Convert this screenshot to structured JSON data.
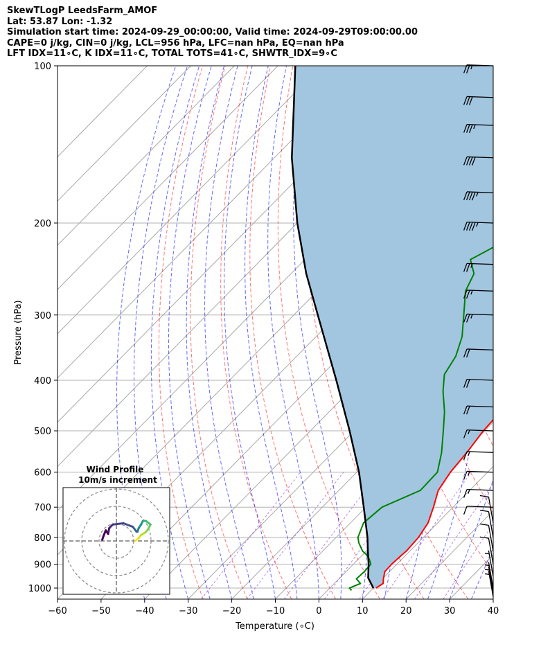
{
  "header": {
    "line1": "SkewTLogP LeedsFarm_AMOF",
    "line2": "Lat: 53.87   Lon: -1.32",
    "line3": "Simulation start time: 2024-09-29_00:00:00, Valid time: 2024-09-29T09:00:00.00",
    "line4": "CAPE=0 j/kg, CIN=0 j/kg, LCL=956 hPa, LFC=nan hPa, EQ=nan hPa",
    "line5": "LFT IDX=11∘C, K IDX=11∘C, TOTAL TOTS=41∘C, SHWTR_IDX=9∘C"
  },
  "chart_data": {
    "type": "line",
    "subtype": "skew-t log-p",
    "xlabel": "Temperature (∘C)",
    "ylabel": "Pressure (hPa)",
    "xlim": [
      -60,
      40
    ],
    "ylim": [
      1050,
      100
    ],
    "y_scale": "log",
    "grid": true,
    "x_ticks": [
      -60,
      -50,
      -40,
      -30,
      -20,
      -10,
      0,
      10,
      20,
      30,
      40
    ],
    "x_tick_labels": [
      "−60",
      "−50",
      "−40",
      "−30",
      "−20",
      "−10",
      "0",
      "10",
      "20",
      "30",
      "40"
    ],
    "y_ticks": [
      1000,
      900,
      800,
      700,
      600,
      500,
      400,
      300,
      200,
      100
    ],
    "y_tick_labels": [
      "1000",
      "900",
      "800",
      "700",
      "600",
      "500",
      "400",
      "300",
      "200",
      "100"
    ],
    "colors": {
      "temperature": "#ff0000",
      "dewpoint": "#008000",
      "parcel": "#000000",
      "fill": "#a2c6e0",
      "dry_adiabat": "#ff0000",
      "moist_adiabat": "#0000ff",
      "mixing_ratio": "#8a2be2",
      "isotherm": "#999999"
    },
    "series": [
      {
        "key": "temperature",
        "pressure": [
          1000,
          980,
          960,
          930,
          900,
          870,
          850,
          800,
          750,
          700,
          650,
          600,
          550,
          500,
          450,
          420,
          400,
          370,
          340,
          300,
          260,
          240,
          235,
          220,
          205,
          190,
          175,
          160,
          150,
          140,
          130,
          120,
          110,
          100
        ],
        "values": [
          10.6,
          11.2,
          10.2,
          8.9,
          8.8,
          9.0,
          9.2,
          8.9,
          7.8,
          5.5,
          2.8,
          1.5,
          0.8,
          -0.3,
          -0.8,
          -1.0,
          -1.5,
          -3.8,
          -7.0,
          -11.5,
          -15.5,
          -18.0,
          -19.1,
          -18.4,
          -19.0,
          -19.6,
          -20.0,
          -22.0,
          -23.0,
          -23.0,
          -25.0,
          -27.0,
          -31.0,
          -37.0
        ]
      },
      {
        "key": "dewpoint",
        "pressure": [
          1010,
          1000,
          980,
          960,
          930,
          900,
          880,
          860,
          850,
          820,
          800,
          750,
          700,
          650,
          600,
          550,
          500,
          460,
          420,
          390,
          360,
          330,
          300,
          270,
          250,
          235,
          220,
          210,
          200,
          180,
          170,
          100
        ],
        "values": [
          5.5,
          4.5,
          6.0,
          4.0,
          4.2,
          4.0,
          2.5,
          0.5,
          -0.8,
          -3.5,
          -5.0,
          -7.0,
          -6.3,
          -1.3,
          -1.5,
          -5.0,
          -9.5,
          -13.5,
          -18.5,
          -22.0,
          -23.5,
          -26.5,
          -31.0,
          -36.0,
          -38.0,
          -42.0,
          -39.0,
          -39.0,
          -38.0,
          -43.0,
          -52.0,
          -36.0
        ]
      },
      {
        "key": "parcel",
        "pressure": [
          1000,
          956,
          900,
          850,
          800,
          700,
          600,
          500,
          400,
          300,
          250,
          200,
          150,
          120,
          100
        ],
        "values": [
          10.0,
          6.5,
          3.5,
          0.4,
          -2.8,
          -10.5,
          -19.5,
          -31.0,
          -45.5,
          -64.5,
          -76.5,
          -90.0,
          -106.0,
          -117.0,
          -126.0
        ]
      }
    ]
  },
  "wind_barbs": [
    {
      "pressure": 1040,
      "speed_kt": 5
    },
    {
      "pressure": 1020,
      "speed_kt": 5
    },
    {
      "pressure": 1000,
      "speed_kt": 5
    },
    {
      "pressure": 950,
      "speed_kt": 5
    },
    {
      "pressure": 900,
      "speed_kt": 10
    },
    {
      "pressure": 850,
      "speed_kt": 10
    },
    {
      "pressure": 800,
      "speed_kt": 10
    },
    {
      "pressure": 750,
      "speed_kt": 10
    },
    {
      "pressure": 700,
      "speed_kt": 10
    },
    {
      "pressure": 650,
      "speed_kt": 15
    },
    {
      "pressure": 600,
      "speed_kt": 15
    },
    {
      "pressure": 550,
      "speed_kt": 15
    },
    {
      "pressure": 500,
      "speed_kt": 15
    },
    {
      "pressure": 450,
      "speed_kt": 20
    },
    {
      "pressure": 400,
      "speed_kt": 20
    },
    {
      "pressure": 350,
      "speed_kt": 20
    },
    {
      "pressure": 300,
      "speed_kt": 25
    },
    {
      "pressure": 270,
      "speed_kt": 25
    },
    {
      "pressure": 240,
      "speed_kt": 25
    },
    {
      "pressure": 200,
      "speed_kt": 45
    },
    {
      "pressure": 175,
      "speed_kt": 45
    },
    {
      "pressure": 150,
      "speed_kt": 40
    },
    {
      "pressure": 130,
      "speed_kt": 35
    },
    {
      "pressure": 115,
      "speed_kt": 30
    },
    {
      "pressure": 100,
      "speed_kt": 25
    }
  ],
  "inset": {
    "title": "Wind Profile",
    "subtitle": "10m/s increment",
    "hodograph_u": [
      3.2,
      3.8,
      4.2,
      5.0,
      5.4,
      5.8,
      5.0,
      4.5,
      4.4,
      4.2,
      3.8,
      3.6,
      3.4,
      2.8,
      1.2,
      -0.6,
      -1.2,
      -1.4,
      -1.8,
      -2.2,
      -2.4
    ],
    "hodograph_v": [
      0.0,
      0.5,
      1.0,
      1.5,
      2.0,
      2.8,
      3.4,
      3.4,
      3.2,
      2.8,
      2.2,
      1.6,
      1.6,
      2.4,
      3.0,
      2.8,
      2.2,
      1.2,
      1.8,
      0.8,
      0.2
    ]
  }
}
